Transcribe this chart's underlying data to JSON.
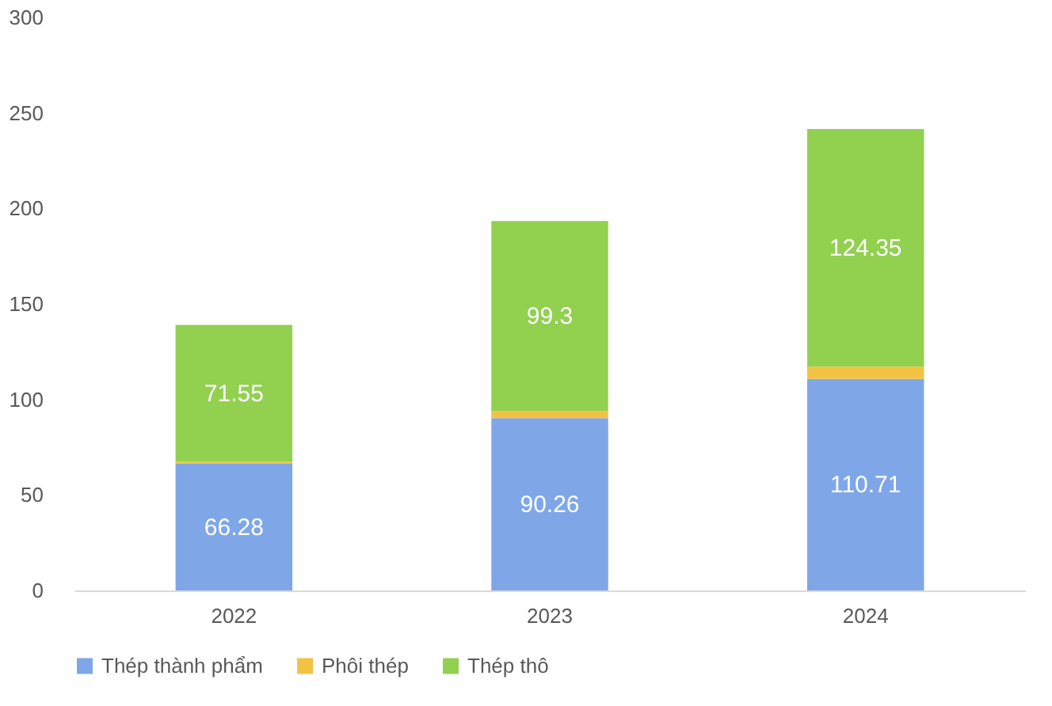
{
  "chart_data": {
    "type": "bar",
    "stacked": true,
    "categories": [
      "2022",
      "2023",
      "2024"
    ],
    "ylim": [
      0,
      300
    ],
    "yticks": [
      0,
      50,
      100,
      150,
      200,
      250,
      300
    ],
    "grid": false,
    "legend": "bottom",
    "series": [
      {
        "name": "Thép thành phẩm",
        "color": "#7fa7e8",
        "values": [
          66.28,
          90.26,
          110.71
        ],
        "value_labels": [
          "66.28",
          "90.26",
          "110.71"
        ]
      },
      {
        "name": "Phôi thép",
        "color": "#f2c343",
        "values": [
          1.2,
          3.8,
          6.5
        ],
        "value_labels": [
          null,
          null,
          null
        ]
      },
      {
        "name": "Thép thô",
        "color": "#92d050",
        "values": [
          71.55,
          99.3,
          124.35
        ],
        "value_labels": [
          "71.55",
          "99.3",
          "124.35"
        ]
      }
    ]
  }
}
